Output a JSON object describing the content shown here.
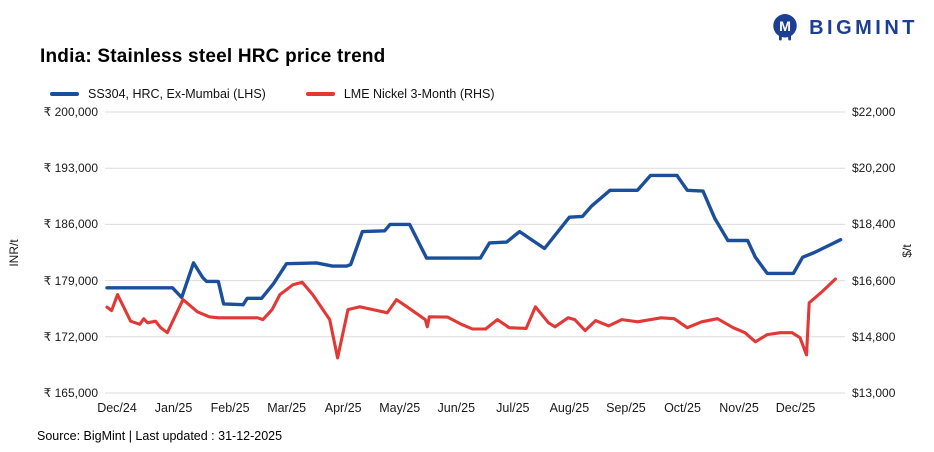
{
  "logo": {
    "text": "BIGMINT"
  },
  "title": "India: Stainless steel HRC price trend",
  "footer": "Source: BigMint | Last updated : 31-12-2025",
  "colors": {
    "brand_navy": "#1c3f94",
    "line_blue": "#1b4f9c",
    "line_red": "#e23836",
    "gridline": "#dcdcdc"
  },
  "chart_data": {
    "type": "line",
    "title": "India: Stainless steel HRC price trend",
    "grid": "horizontal-only",
    "legend_position": "top-left",
    "x_axis": {
      "labels": [
        "Dec/24",
        "Jan/25",
        "Feb/25",
        "Mar/25",
        "Apr/25",
        "May/25",
        "Jun/25",
        "Jul/25",
        "Aug/25",
        "Sep/25",
        "Oct/25",
        "Nov/25",
        "Dec/25"
      ],
      "unit": "weeks, Dec 2024 - Dec 2025"
    },
    "left_axis": {
      "title": "INR/t",
      "prefix": "₹ ",
      "min": 165000,
      "max": 200000,
      "ticks": [
        200000,
        193000,
        186000,
        179000,
        172000,
        165000
      ]
    },
    "right_axis": {
      "title": "$/t",
      "prefix": "$",
      "min": 13000,
      "max": 22000,
      "ticks": [
        22000,
        20200,
        18400,
        16600,
        14800,
        13000
      ]
    },
    "series": [
      {
        "name": "SS304, HRC, Ex-Mumbai (LHS)",
        "axis": "left",
        "color": "#1b4f9c",
        "width": 3.4,
        "points": [
          [
            0,
            178100
          ],
          [
            5,
            178100
          ],
          [
            5.7,
            176900
          ],
          [
            6.6,
            181200
          ],
          [
            7.3,
            179400
          ],
          [
            7.6,
            178900
          ],
          [
            8.5,
            178900
          ],
          [
            8.9,
            176100
          ],
          [
            10.4,
            176000
          ],
          [
            10.7,
            176800
          ],
          [
            11.8,
            176800
          ],
          [
            12.7,
            178600
          ],
          [
            13.7,
            181100
          ],
          [
            16,
            181200
          ],
          [
            17.2,
            180800
          ],
          [
            18.3,
            180800
          ],
          [
            18.6,
            181000
          ],
          [
            19.5,
            185100
          ],
          [
            21.2,
            185200
          ],
          [
            21.6,
            186000
          ],
          [
            23.1,
            186000
          ],
          [
            24.4,
            181800
          ],
          [
            28.5,
            181800
          ],
          [
            29.2,
            183700
          ],
          [
            30.5,
            183800
          ],
          [
            31.5,
            185100
          ],
          [
            33.4,
            183000
          ],
          [
            35.3,
            186900
          ],
          [
            36.3,
            187000
          ],
          [
            37,
            188300
          ],
          [
            38.4,
            190250
          ],
          [
            40.5,
            190250
          ],
          [
            41.5,
            192100
          ],
          [
            43.5,
            192100
          ],
          [
            44.3,
            190250
          ],
          [
            45.5,
            190150
          ],
          [
            46.4,
            186750
          ],
          [
            47.4,
            184000
          ],
          [
            48.9,
            184000
          ],
          [
            49.5,
            181900
          ],
          [
            50.4,
            179900
          ],
          [
            52.4,
            179900
          ],
          [
            53.1,
            181900
          ],
          [
            54,
            182500
          ],
          [
            55,
            183300
          ],
          [
            56,
            184100
          ]
        ]
      },
      {
        "name": "LME Nickel 3-Month (RHS)",
        "axis": "right",
        "color": "#e23836",
        "width": 3.1,
        "points": [
          [
            0,
            15750
          ],
          [
            0.35,
            15640
          ],
          [
            0.8,
            16150
          ],
          [
            1.8,
            15300
          ],
          [
            2.5,
            15200
          ],
          [
            2.8,
            15380
          ],
          [
            3.1,
            15250
          ],
          [
            3.7,
            15300
          ],
          [
            4.1,
            15090
          ],
          [
            4.6,
            14930
          ],
          [
            5.8,
            15990
          ],
          [
            6.9,
            15600
          ],
          [
            7.8,
            15440
          ],
          [
            8.5,
            15410
          ],
          [
            11.5,
            15410
          ],
          [
            11.9,
            15350
          ],
          [
            12.6,
            15670
          ],
          [
            13.2,
            16150
          ],
          [
            14.2,
            16470
          ],
          [
            14.9,
            16550
          ],
          [
            15.7,
            16150
          ],
          [
            17,
            15350
          ],
          [
            17.6,
            14125
          ],
          [
            18.4,
            15670
          ],
          [
            19.3,
            15760
          ],
          [
            20.3,
            15670
          ],
          [
            21.4,
            15570
          ],
          [
            22.1,
            15990
          ],
          [
            22.9,
            15760
          ],
          [
            24.3,
            15350
          ],
          [
            24.45,
            15120
          ],
          [
            24.6,
            15440
          ],
          [
            26,
            15430
          ],
          [
            27.1,
            15190
          ],
          [
            27.9,
            15050
          ],
          [
            28.9,
            15050
          ],
          [
            29.8,
            15350
          ],
          [
            30.7,
            15090
          ],
          [
            32,
            15070
          ],
          [
            32.7,
            15760
          ],
          [
            33.7,
            15250
          ],
          [
            34.2,
            15120
          ],
          [
            35.2,
            15410
          ],
          [
            35.7,
            15350
          ],
          [
            36.5,
            15000
          ],
          [
            37.3,
            15320
          ],
          [
            38.3,
            15150
          ],
          [
            39.3,
            15350
          ],
          [
            40.5,
            15280
          ],
          [
            42.3,
            15410
          ],
          [
            43.3,
            15380
          ],
          [
            44.3,
            15090
          ],
          [
            45.4,
            15280
          ],
          [
            46.6,
            15380
          ],
          [
            47.8,
            15090
          ],
          [
            48.7,
            14930
          ],
          [
            49.5,
            14640
          ],
          [
            50.4,
            14870
          ],
          [
            51.4,
            14930
          ],
          [
            52.3,
            14930
          ],
          [
            52.9,
            14770
          ],
          [
            53.4,
            14220
          ],
          [
            53.6,
            15890
          ],
          [
            54.6,
            16250
          ],
          [
            55.6,
            16650
          ]
        ]
      }
    ]
  }
}
